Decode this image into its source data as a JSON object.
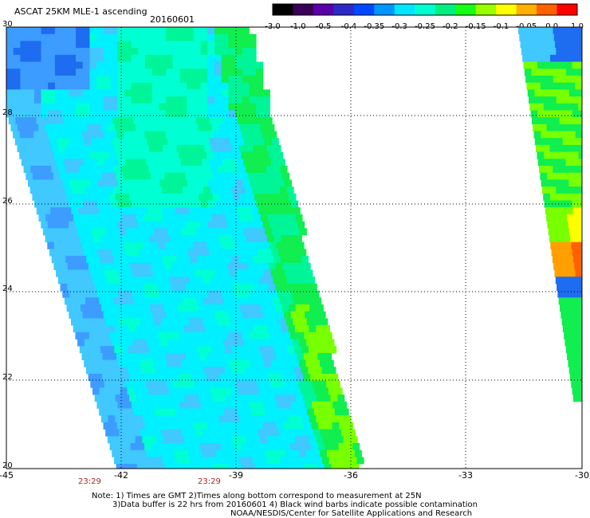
{
  "header": {
    "title": "ASCAT 25KM MLE-1 ascending",
    "date": "20160601"
  },
  "colorbar": {
    "labels": [
      "-3.0",
      "-1.0",
      "-0.5",
      "-0.4",
      "-0.35",
      "-0.3",
      "-0.25",
      "-0.2",
      "-0.15",
      "-0.1",
      "-0.05",
      "0.0",
      "1.0"
    ],
    "colors": [
      "#000000",
      "#3a0058",
      "#5a00a8",
      "#2e28c8",
      "#0048ff",
      "#0096ff",
      "#00e6ff",
      "#00ffd2",
      "#00f080",
      "#14ff14",
      "#9aff00",
      "#ffff00",
      "#ffb000",
      "#ff6000",
      "#ff0000"
    ]
  },
  "map": {
    "lon_labels": [
      "-45",
      "-42",
      "-39",
      "-36",
      "-33",
      "-30"
    ],
    "lat_labels": [
      "30",
      "28",
      "26",
      "24",
      "22",
      "20"
    ],
    "time_labels": [
      "23:29",
      "23:29"
    ]
  },
  "notes": {
    "line1": "Note: 1) Times are GMT 2)Times along bottom correspond to measurement at 25N",
    "line2": "3)Data buffer is 22 hrs from 20160601 4) Black wind barbs indicate possible contamination",
    "line3": "NOAA/NESDIS/Center for Satellite Applications and Research"
  }
}
